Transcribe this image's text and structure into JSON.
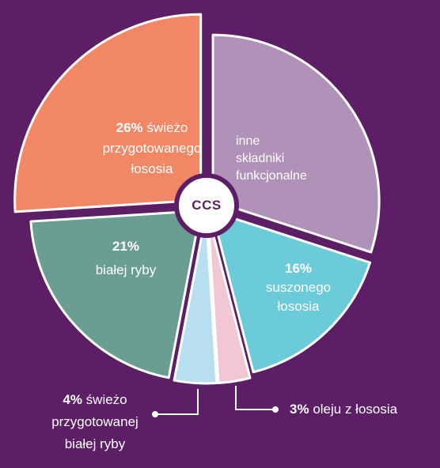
{
  "chart_data": {
    "type": "pie",
    "center_label": "CCS",
    "slices": [
      {
        "pct_text": "",
        "label": "inne składniki funkcjonalne",
        "lines": [
          "inne",
          "składniki",
          "funkcjonalne"
        ],
        "value": 30,
        "color": "#b091b8"
      },
      {
        "pct_text": "16%",
        "label": "suszonego łososia",
        "lines": [
          "suszonego",
          "łososia"
        ],
        "value": 16,
        "color": "#6ccbd9"
      },
      {
        "pct_text": "3%",
        "label": "oleju z łososia",
        "lines": [
          "oleju z łososia"
        ],
        "value": 3,
        "color": "#f2c6d3"
      },
      {
        "pct_text": "4%",
        "label": "świeżo przygotowanej białej ryby",
        "lines": [
          "świeżo",
          "przygotowanej",
          "białej ryby"
        ],
        "value": 4,
        "color": "#b7dff0"
      },
      {
        "pct_text": "21%",
        "label": "białej ryby",
        "lines": [
          "białej ryby"
        ],
        "value": 21,
        "color": "#6a9e92"
      },
      {
        "pct_text": "26%",
        "label": "świeżo przygotowanego łososia",
        "lines": [
          "świeżo",
          "przygotowanego",
          "łososia"
        ],
        "value": 26,
        "color": "#f28766"
      }
    ]
  }
}
